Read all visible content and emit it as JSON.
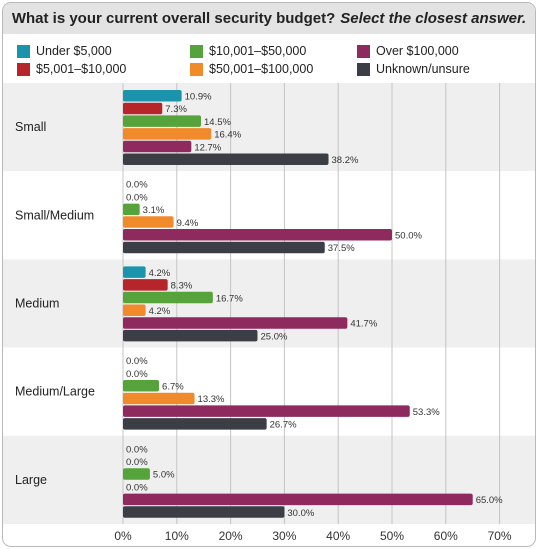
{
  "title": {
    "main": "What is your current overall security budget?",
    "subtitle": "Select the closest answer."
  },
  "colors": {
    "Under $5,000": "#1b93ad",
    "$5,001–$10,000": "#b5252a",
    "$10,001–$50,000": "#57a33b",
    "$50,001–$100,000": "#f08a2a",
    "Over $100,000": "#8e2a5e",
    "Unknown/unsure": "#3b3e45"
  },
  "chart_data": {
    "type": "bar",
    "orientation": "horizontal",
    "title": "What is your current overall security budget? Select the closest answer.",
    "categories": [
      "Small",
      "Small/Medium",
      "Medium",
      "Medium/Large",
      "Large"
    ],
    "series": [
      {
        "name": "Under $5,000",
        "values": [
          10.9,
          0.0,
          4.2,
          0.0,
          0.0
        ]
      },
      {
        "name": "$5,001–$10,000",
        "values": [
          7.3,
          0.0,
          8.3,
          0.0,
          0.0
        ]
      },
      {
        "name": "$10,001–$50,000",
        "values": [
          14.5,
          3.1,
          16.7,
          6.7,
          5.0
        ]
      },
      {
        "name": "$50,001–$100,000",
        "values": [
          16.4,
          9.4,
          4.2,
          13.3,
          0.0
        ]
      },
      {
        "name": "Over $100,000",
        "values": [
          12.7,
          50.0,
          41.7,
          53.3,
          65.0
        ]
      },
      {
        "name": "Unknown/unsure",
        "values": [
          38.2,
          37.5,
          25.0,
          26.7,
          30.0
        ]
      }
    ],
    "xlim": [
      0,
      70
    ],
    "xticks": [
      "0%",
      "10%",
      "20%",
      "30%",
      "40%",
      "50%",
      "60%",
      "70%"
    ],
    "grid": true,
    "legend_position": "top"
  }
}
